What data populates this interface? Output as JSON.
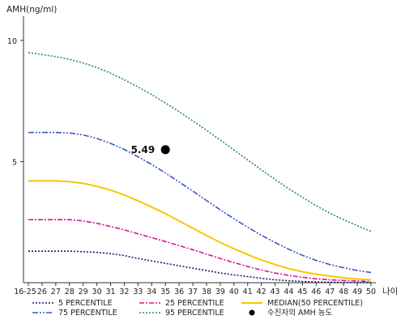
{
  "chart_data": {
    "type": "line",
    "ylabel": "AMH(ng/ml)",
    "xlabel": "나이",
    "ylim": [
      0,
      11
    ],
    "yticks": [
      5,
      10
    ],
    "x": [
      "16-25",
      "26",
      "27",
      "28",
      "29",
      "30",
      "31",
      "32",
      "33",
      "34",
      "35",
      "36",
      "37",
      "38",
      "39",
      "40",
      "41",
      "42",
      "43",
      "44",
      "45",
      "46",
      "47",
      "48",
      "49",
      "50"
    ],
    "grid": false,
    "series": [
      {
        "name": "5 PERCENTILE",
        "color": "#1a1a6e",
        "dash": "2,2",
        "values": [
          1.3,
          1.3,
          1.3,
          1.3,
          1.28,
          1.25,
          1.2,
          1.12,
          1.0,
          0.9,
          0.8,
          0.7,
          0.6,
          0.5,
          0.4,
          0.32,
          0.25,
          0.18,
          0.12,
          0.08,
          0.05,
          0.03,
          0.02,
          0.01,
          0.01,
          0.0
        ]
      },
      {
        "name": "25 PERCENTILE",
        "color": "#e0148c",
        "dash": "6,2,2,2",
        "values": [
          2.6,
          2.6,
          2.6,
          2.6,
          2.55,
          2.45,
          2.32,
          2.18,
          2.02,
          1.86,
          1.7,
          1.53,
          1.36,
          1.18,
          1.0,
          0.83,
          0.67,
          0.52,
          0.4,
          0.3,
          0.22,
          0.16,
          0.12,
          0.09,
          0.07,
          0.05
        ]
      },
      {
        "name": "MEDIAN(50 PERCENTILE)",
        "color": "#f5c800",
        "dash": "",
        "values": [
          4.2,
          4.2,
          4.2,
          4.17,
          4.1,
          3.98,
          3.82,
          3.62,
          3.38,
          3.12,
          2.85,
          2.55,
          2.25,
          1.95,
          1.66,
          1.4,
          1.16,
          0.94,
          0.75,
          0.58,
          0.45,
          0.35,
          0.27,
          0.2,
          0.15,
          0.12
        ]
      },
      {
        "name": "75 PERCENTILE",
        "color": "#3b55c8",
        "dash": "7,2,2,2,2,2",
        "values": [
          6.2,
          6.2,
          6.2,
          6.18,
          6.1,
          5.95,
          5.75,
          5.5,
          5.2,
          4.88,
          4.53,
          4.16,
          3.78,
          3.39,
          3.01,
          2.64,
          2.29,
          1.96,
          1.66,
          1.38,
          1.13,
          0.92,
          0.75,
          0.62,
          0.5,
          0.42
        ]
      },
      {
        "name": "95 PERCENTILE",
        "color": "#2e8b57",
        "dash": "2,2",
        "values": [
          9.5,
          9.42,
          9.33,
          9.22,
          9.07,
          8.88,
          8.65,
          8.38,
          8.08,
          7.76,
          7.42,
          7.06,
          6.68,
          6.29,
          5.89,
          5.48,
          5.07,
          4.66,
          4.26,
          3.88,
          3.52,
          3.18,
          2.87,
          2.6,
          2.35,
          2.12
        ]
      }
    ],
    "annotation": {
      "name": "수진자의 AMH 농도",
      "x": "35",
      "y": 5.49,
      "label": "5.49",
      "color": "#000000"
    },
    "legend": {
      "placement": "bottom",
      "items": [
        {
          "name": "5 PERCENTILE",
          "kind": "line"
        },
        {
          "name": "25 PERCENTILE",
          "kind": "line"
        },
        {
          "name": "MEDIAN(50 PERCENTILE)",
          "kind": "line"
        },
        {
          "name": "75 PERCENTILE",
          "kind": "line"
        },
        {
          "name": "95 PERCENTILE",
          "kind": "line"
        },
        {
          "name": "수진자의 AMH 농도",
          "kind": "dot"
        }
      ]
    }
  }
}
